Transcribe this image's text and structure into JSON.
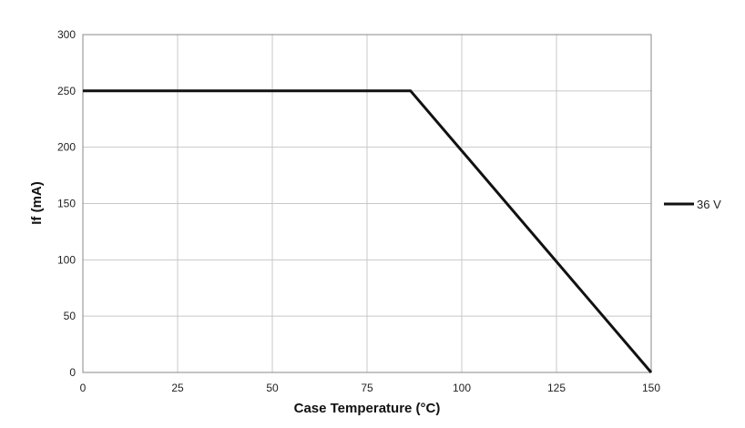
{
  "chart_data": {
    "type": "line",
    "xlabel": "Case Temperature (°C)",
    "ylabel": "If (mA)",
    "xlim": [
      0,
      150
    ],
    "ylim": [
      0,
      300
    ],
    "xticks": [
      0,
      25,
      50,
      75,
      100,
      125,
      150
    ],
    "yticks": [
      0,
      50,
      100,
      150,
      200,
      250,
      300
    ],
    "grid": true,
    "legend_position": "right",
    "series": [
      {
        "name": "36 V",
        "color": "#111111",
        "points": [
          [
            0,
            250
          ],
          [
            86.5,
            250
          ],
          [
            150,
            0
          ]
        ]
      }
    ]
  }
}
